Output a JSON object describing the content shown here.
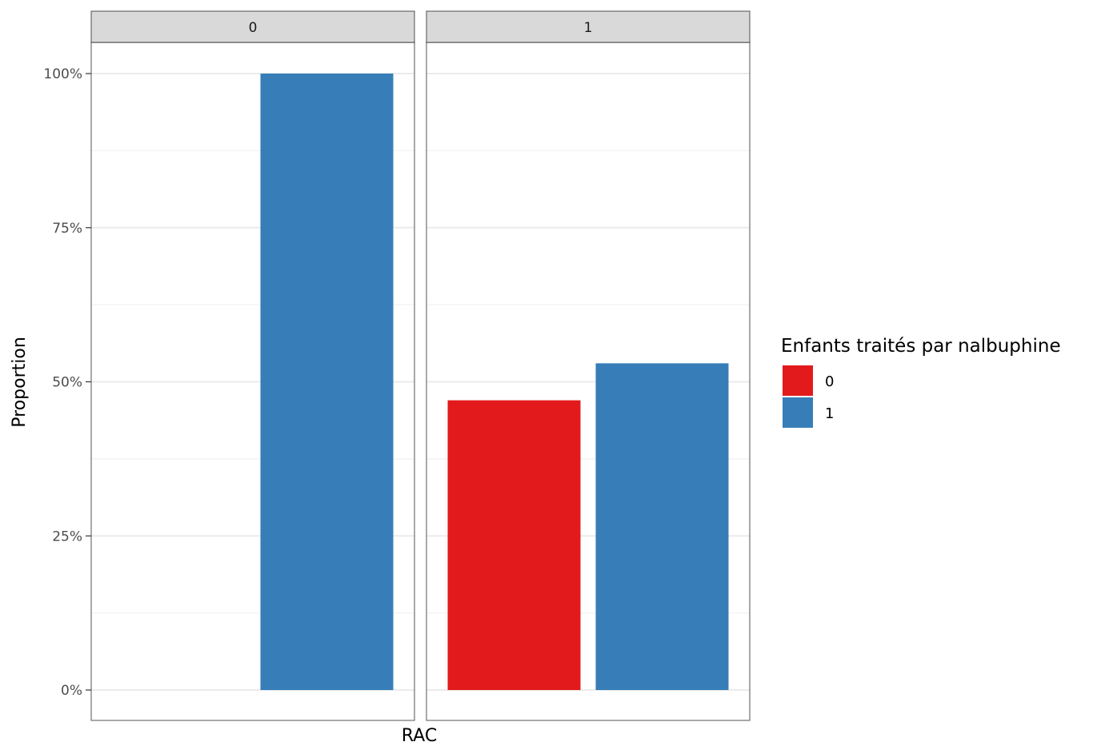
{
  "chart_data": {
    "type": "bar",
    "xlabel": "RAC",
    "ylabel": "Proportion",
    "ylim": [
      0,
      1
    ],
    "y_ticks": [
      {
        "value": 0,
        "label": "0%"
      },
      {
        "value": 0.25,
        "label": "25%"
      },
      {
        "value": 0.5,
        "label": "50%"
      },
      {
        "value": 0.75,
        "label": "75%"
      },
      {
        "value": 1,
        "label": "100%"
      }
    ],
    "grid": true,
    "legend": {
      "title": "Enfants traités par nalbuphine",
      "placement": "right",
      "entries": [
        {
          "label": "0",
          "color": "#e31a1c"
        },
        {
          "label": "1",
          "color": "#377eb8"
        }
      ]
    },
    "facets": [
      {
        "strip_label": "0",
        "bars": [
          {
            "group": "1",
            "value": 1.0,
            "color": "#377eb8"
          }
        ]
      },
      {
        "strip_label": "1",
        "bars": [
          {
            "group": "0",
            "value": 0.47,
            "color": "#e31a1c"
          },
          {
            "group": "1",
            "value": 0.53,
            "color": "#377eb8"
          }
        ]
      }
    ]
  }
}
